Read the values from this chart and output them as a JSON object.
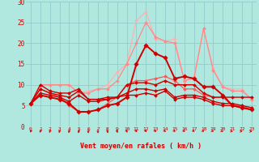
{
  "xlabel": "Vent moyen/en rafales ( km/h )",
  "bg_color": "#b0e8e0",
  "grid_color": "#90cccc",
  "xlim": [
    -0.5,
    23.5
  ],
  "ylim": [
    0,
    30
  ],
  "yticks": [
    0,
    5,
    10,
    15,
    20,
    25,
    30
  ],
  "xticks": [
    0,
    1,
    2,
    3,
    4,
    5,
    6,
    7,
    8,
    9,
    10,
    11,
    12,
    13,
    14,
    15,
    16,
    17,
    18,
    19,
    20,
    21,
    22,
    23
  ],
  "text_color": "#cc0000",
  "series": [
    {
      "x": [
        0,
        1,
        2,
        3,
        4,
        5,
        6,
        7,
        8,
        9,
        10,
        11,
        12,
        13,
        14,
        15,
        16,
        17,
        18,
        19,
        20,
        21,
        22,
        23
      ],
      "y": [
        5.5,
        10.0,
        10.0,
        10.0,
        10.0,
        8.0,
        8.5,
        9.0,
        10.0,
        13.0,
        15.0,
        25.5,
        27.5,
        21.0,
        20.5,
        21.0,
        11.0,
        12.0,
        23.5,
        14.0,
        9.5,
        9.0,
        9.0,
        6.5
      ],
      "color": "#ffb0b0",
      "lw": 0.9,
      "marker": "D",
      "ms": 2.0
    },
    {
      "x": [
        0,
        1,
        2,
        3,
        4,
        5,
        6,
        7,
        8,
        9,
        10,
        11,
        12,
        13,
        14,
        15,
        16,
        17,
        18,
        19,
        20,
        21,
        22,
        23
      ],
      "y": [
        5.5,
        10.0,
        10.0,
        10.0,
        10.0,
        8.0,
        8.0,
        9.0,
        9.0,
        11.0,
        15.0,
        20.0,
        25.0,
        21.5,
        20.5,
        20.0,
        11.0,
        11.5,
        23.5,
        13.5,
        9.5,
        8.5,
        8.5,
        6.5
      ],
      "color": "#ff8888",
      "lw": 0.9,
      "marker": "D",
      "ms": 2.0
    },
    {
      "x": [
        0,
        1,
        2,
        3,
        4,
        5,
        6,
        7,
        8,
        9,
        10,
        11,
        12,
        13,
        14,
        15,
        16,
        17,
        18,
        19,
        20,
        21,
        22,
        23
      ],
      "y": [
        5.5,
        9.0,
        8.0,
        7.0,
        5.0,
        3.5,
        3.5,
        4.0,
        5.5,
        7.0,
        10.0,
        11.0,
        11.0,
        11.5,
        12.0,
        11.0,
        9.0,
        9.0,
        7.5,
        7.0,
        7.0,
        5.0,
        5.0,
        4.0
      ],
      "color": "#ff5555",
      "lw": 0.9,
      "marker": "D",
      "ms": 2.0
    },
    {
      "x": [
        0,
        1,
        2,
        3,
        4,
        5,
        6,
        7,
        8,
        9,
        10,
        11,
        12,
        13,
        14,
        15,
        16,
        17,
        18,
        19,
        20,
        21,
        22,
        23
      ],
      "y": [
        5.5,
        7.5,
        7.0,
        6.5,
        5.5,
        3.5,
        3.5,
        4.0,
        5.0,
        5.5,
        7.0,
        15.0,
        19.5,
        17.5,
        16.5,
        11.5,
        12.0,
        11.5,
        9.5,
        9.5,
        7.5,
        5.0,
        4.5,
        4.0
      ],
      "color": "#cc0000",
      "lw": 1.4,
      "marker": "D",
      "ms": 2.8
    },
    {
      "x": [
        0,
        1,
        2,
        3,
        4,
        5,
        6,
        7,
        8,
        9,
        10,
        11,
        12,
        13,
        14,
        15,
        16,
        17,
        18,
        19,
        20,
        21,
        22,
        23
      ],
      "y": [
        5.5,
        10.0,
        8.5,
        8.0,
        8.0,
        9.0,
        6.5,
        6.5,
        7.0,
        7.0,
        10.0,
        10.5,
        10.5,
        10.0,
        11.0,
        10.0,
        10.0,
        10.0,
        8.0,
        7.0,
        7.0,
        7.0,
        7.0,
        7.0
      ],
      "color": "#cc0000",
      "lw": 1.0,
      "marker": "D",
      "ms": 2.0
    },
    {
      "x": [
        0,
        1,
        2,
        3,
        4,
        5,
        6,
        7,
        8,
        9,
        10,
        11,
        12,
        13,
        14,
        15,
        16,
        17,
        18,
        19,
        20,
        21,
        22,
        23
      ],
      "y": [
        5.5,
        9.0,
        8.0,
        7.5,
        7.0,
        8.5,
        6.5,
        6.5,
        6.5,
        7.0,
        8.0,
        9.0,
        9.0,
        8.5,
        9.0,
        7.0,
        7.5,
        7.5,
        7.0,
        6.0,
        5.5,
        5.5,
        5.0,
        4.5
      ],
      "color": "#cc0000",
      "lw": 1.0,
      "marker": "D",
      "ms": 2.0
    },
    {
      "x": [
        0,
        1,
        2,
        3,
        4,
        5,
        6,
        7,
        8,
        9,
        10,
        11,
        12,
        13,
        14,
        15,
        16,
        17,
        18,
        19,
        20,
        21,
        22,
        23
      ],
      "y": [
        5.5,
        8.0,
        7.5,
        7.0,
        6.0,
        7.5,
        6.0,
        6.0,
        6.5,
        7.0,
        7.5,
        7.5,
        8.0,
        7.5,
        8.5,
        6.5,
        7.0,
        7.0,
        6.5,
        5.5,
        5.0,
        5.0,
        4.5,
        4.0
      ],
      "color": "#cc0000",
      "lw": 1.0,
      "marker": "D",
      "ms": 2.0
    }
  ],
  "arrow_angles_deg": [
    -45,
    -40,
    -35,
    -30,
    -25,
    -15,
    -5,
    5,
    15,
    30,
    40,
    50,
    55,
    60,
    60,
    65,
    65,
    65,
    70,
    75,
    80,
    85,
    88,
    90
  ]
}
